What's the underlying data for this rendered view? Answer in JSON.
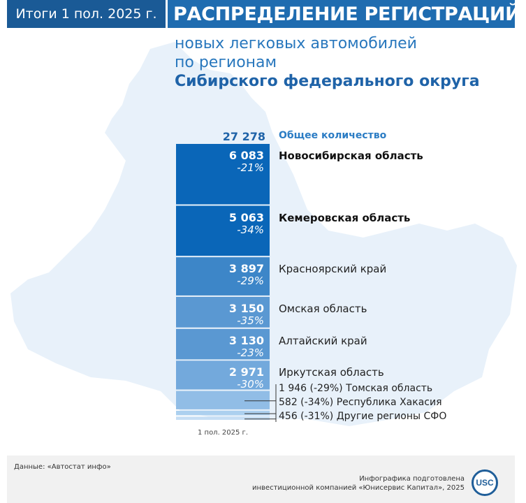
{
  "header": {
    "period": "Итоги 1 пол. 2025 г.",
    "title": "РАСПРЕДЕЛЕНИЕ РЕГИСТРАЦИЙ",
    "subtitle_line1": "новых легковых автомобилей",
    "subtitle_line2": "по регионам",
    "subtitle_line3": "Сибирского федерального округа"
  },
  "chart_data": {
    "type": "bar",
    "stacked": true,
    "total": {
      "value": "27 278",
      "label": "Общее количество"
    },
    "categories": [
      "1 пол. 2025 г."
    ],
    "segments": [
      {
        "label": "Новосибирская область",
        "value_text": "6 083",
        "value": 6083,
        "change": "-21%",
        "color": "#0a66b8"
      },
      {
        "label": "Кемеровская область",
        "value_text": "5 063",
        "value": 5063,
        "change": "-34%",
        "color": "#0a66b8"
      },
      {
        "label": "Красноярский край",
        "value_text": "3 897",
        "value": 3897,
        "change": "-29%",
        "color": "#3d86c8"
      },
      {
        "label": "Омская область",
        "value_text": "3 150",
        "value": 3150,
        "change": "-35%",
        "color": "#5a98d2"
      },
      {
        "label": "Алтайский край",
        "value_text": "3 130",
        "value": 3130,
        "change": "-23%",
        "color": "#5a98d2"
      },
      {
        "label": "Иркутская область",
        "value_text": "2 971",
        "value": 2971,
        "change": "-30%",
        "color": "#73a9dc"
      },
      {
        "label": "1 946 (-29%) Томская область",
        "value": 1946,
        "color": "#91bde6"
      },
      {
        "label": "582 (-34%) Республика Хакасия",
        "value": 582,
        "color": "#acd0ef"
      },
      {
        "label": "456 (-31%) Другие регионы СФО",
        "value": 456,
        "color": "#c6def4"
      }
    ],
    "bold_labels": [
      "Новосибирская область",
      "Кемеровская область"
    ]
  },
  "footer": {
    "source": "Данные: «Автостат инфо»",
    "credit_line1": "Инфографика подготовлена",
    "credit_line2": "инвестиционной компанией «Юнисервис Капитал», 2025",
    "logo_text": "USC"
  },
  "colors": {
    "header_dark": "#1a5a96",
    "header": "#1f6cb0",
    "accent": "#2877bd"
  }
}
